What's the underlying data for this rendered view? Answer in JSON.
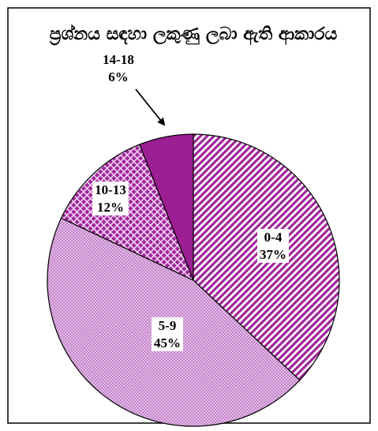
{
  "chart_data": {
    "type": "pie",
    "title": "ප්‍රශ්නය සඳහා ලකුණු ලබා ඇති ආකාරය",
    "categories": [
      "0-4",
      "5-9",
      "10-13",
      "14-18"
    ],
    "values": [
      37,
      45,
      12,
      6
    ],
    "value_labels": [
      "37%",
      "45%",
      "12%",
      "6%"
    ],
    "colors": [
      "#a0249b",
      "#c685cd",
      "#a0249b",
      "#9b1f92"
    ],
    "patterns": [
      "diagonal-stripes",
      "dots",
      "crosshatch",
      "solid"
    ],
    "start_angle": 0,
    "direction": "clockwise"
  }
}
